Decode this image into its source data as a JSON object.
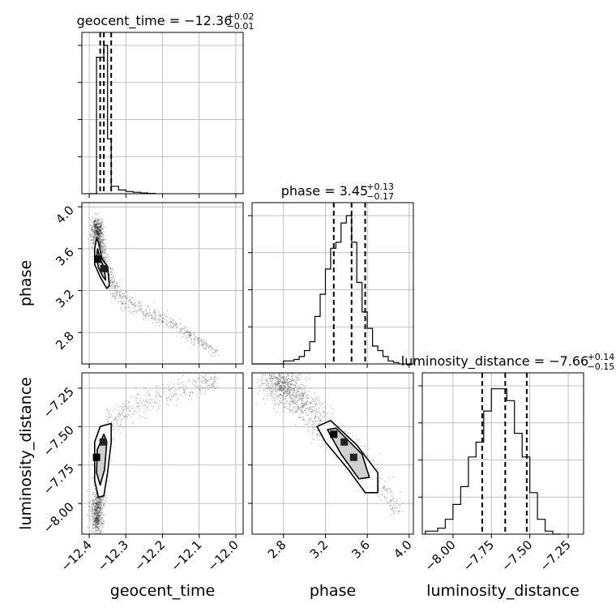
{
  "chart_data": {
    "type": "corner",
    "grid": true,
    "parameters": [
      {
        "name": "geocent_time",
        "range": [
          -12.42,
          -11.98
        ],
        "ticks": [
          -12.4,
          -12.3,
          -12.2,
          -12.1,
          -12.0
        ],
        "tick_labels": [
          "−12.4",
          "−12.3",
          "−12.2",
          "−12.1",
          "−12.0"
        ],
        "title": {
          "main": "geocent_time = −12.36",
          "plus": "+0.02",
          "minus": "−0.01"
        },
        "median": -12.36,
        "lower": -12.37,
        "upper": -12.34,
        "histogram": {
          "bins": [
            -12.4,
            -12.38,
            -12.37,
            -12.36,
            -12.35,
            -12.34,
            -12.32,
            -12.3,
            -12.28,
            -12.26,
            -12.24,
            -12.22
          ],
          "counts": [
            0,
            0.92,
            0.92,
            1.0,
            0.37,
            0.05,
            0.025,
            0.015,
            0.01,
            0.005,
            0.002,
            0
          ]
        }
      },
      {
        "name": "phase",
        "range": [
          2.5,
          4.04
        ],
        "ticks": [
          2.8,
          3.2,
          3.6,
          4.0
        ],
        "tick_labels": [
          "2.8",
          "3.2",
          "3.6",
          "4.0"
        ],
        "title": {
          "main": "phase = 3.45",
          "plus": "+0.13",
          "minus": "−0.17"
        },
        "median": 3.45,
        "lower": 3.28,
        "upper": 3.58,
        "histogram": {
          "bins": [
            2.5,
            2.8,
            2.9,
            2.95,
            3.0,
            3.05,
            3.1,
            3.15,
            3.2,
            3.25,
            3.3,
            3.35,
            3.4,
            3.45,
            3.5,
            3.55,
            3.6,
            3.65,
            3.7,
            3.75,
            3.8,
            3.85,
            3.9,
            4.04
          ],
          "counts": [
            0,
            0.02,
            0.03,
            0.05,
            0.09,
            0.15,
            0.32,
            0.47,
            0.64,
            0.78,
            0.82,
            0.95,
            1.0,
            0.82,
            0.55,
            0.35,
            0.24,
            0.12,
            0.09,
            0.05,
            0.02,
            0.01,
            0
          ]
        }
      },
      {
        "name": "luminosity_distance",
        "range": [
          -8.2,
          -7.15
        ],
        "ticks": [
          -8.0,
          -7.75,
          -7.5,
          -7.25
        ],
        "tick_labels": [
          "−8.00",
          "−7.75",
          "−7.50",
          "−7.25"
        ],
        "y_tick_labels": [
          "−8.00",
          "−7.75",
          "−7.50",
          "−7.25"
        ],
        "title": {
          "main": "luminosity_distance = −7.66",
          "plus": "+0.14",
          "minus": "−0.15"
        },
        "median": -7.66,
        "lower": -7.81,
        "upper": -7.52,
        "histogram": {
          "bins": [
            -8.18,
            -8.1,
            -8.05,
            -8.0,
            -7.95,
            -7.9,
            -7.85,
            -7.8,
            -7.75,
            -7.7,
            -7.65,
            -7.6,
            -7.55,
            -7.5,
            -7.45,
            -7.4,
            -7.35,
            -7.3
          ],
          "counts": [
            0.02,
            0.04,
            0.1,
            0.2,
            0.32,
            0.52,
            0.62,
            0.83,
            0.98,
            0.98,
            0.9,
            0.68,
            0.52,
            0.28,
            0.1,
            0.02,
            0
          ]
        }
      }
    ],
    "y_axis_labels": {
      "row1": "phase",
      "row2": "luminosity_distance"
    },
    "phase_ytick_labels": [
      "2.8",
      "3.2",
      "3.6",
      "4.0"
    ],
    "pairs": {
      "phase_vs_geocent_time": {
        "scatter_trend": [
          [
            -12.38,
            3.8
          ],
          [
            -12.37,
            3.6
          ],
          [
            -12.36,
            3.45
          ],
          [
            -12.35,
            3.35
          ],
          [
            -12.33,
            3.2
          ],
          [
            -12.3,
            3.1
          ],
          [
            -12.25,
            3.0
          ],
          [
            -12.2,
            2.92
          ],
          [
            -12.15,
            2.83
          ],
          [
            -12.1,
            2.72
          ],
          [
            -12.05,
            2.6
          ]
        ],
        "contour_outer": [
          [
            -12.385,
            3.6
          ],
          [
            -12.38,
            3.7
          ],
          [
            -12.375,
            3.66
          ],
          [
            -12.365,
            3.5
          ],
          [
            -12.35,
            3.43
          ],
          [
            -12.345,
            3.25
          ],
          [
            -12.352,
            3.22
          ],
          [
            -12.37,
            3.33
          ],
          [
            -12.385,
            3.45
          ]
        ],
        "contour_inner": [
          [
            -12.38,
            3.52
          ],
          [
            -12.377,
            3.6
          ],
          [
            -12.37,
            3.5
          ],
          [
            -12.36,
            3.43
          ],
          [
            -12.355,
            3.3
          ],
          [
            -12.362,
            3.33
          ],
          [
            -12.375,
            3.42
          ]
        ],
        "peaks": [
          [
            -12.377,
            3.5
          ],
          [
            -12.36,
            3.41
          ]
        ]
      },
      "ld_vs_geocent_time": {
        "scatter_trend": [
          [
            -12.38,
            -8.1
          ],
          [
            -12.37,
            -7.9
          ],
          [
            -12.36,
            -7.7
          ],
          [
            -12.35,
            -7.5
          ],
          [
            -12.3,
            -7.4
          ],
          [
            -12.2,
            -7.3
          ],
          [
            -12.1,
            -7.22
          ],
          [
            -12.05,
            -7.2
          ]
        ],
        "contour_outer": [
          [
            -12.385,
            -7.85
          ],
          [
            -12.385,
            -7.6
          ],
          [
            -12.37,
            -7.5
          ],
          [
            -12.34,
            -7.48
          ],
          [
            -12.34,
            -7.6
          ],
          [
            -12.35,
            -7.8
          ],
          [
            -12.36,
            -7.95
          ],
          [
            -12.375,
            -7.96
          ]
        ],
        "contour_inner": [
          [
            -12.38,
            -7.8
          ],
          [
            -12.378,
            -7.65
          ],
          [
            -12.36,
            -7.55
          ],
          [
            -12.352,
            -7.6
          ],
          [
            -12.358,
            -7.78
          ],
          [
            -12.37,
            -7.88
          ]
        ],
        "peaks": [
          [
            -12.38,
            -7.7
          ],
          [
            -12.362,
            -7.6
          ]
        ]
      },
      "ld_vs_phase": {
        "scatter_trend": [
          [
            2.75,
            -7.2
          ],
          [
            2.9,
            -7.3
          ],
          [
            3.05,
            -7.4
          ],
          [
            3.2,
            -7.52
          ],
          [
            3.35,
            -7.6
          ],
          [
            3.5,
            -7.7
          ],
          [
            3.65,
            -7.82
          ],
          [
            3.8,
            -7.95
          ],
          [
            3.9,
            -8.05
          ]
        ],
        "contour_outer": [
          [
            3.12,
            -7.5
          ],
          [
            3.25,
            -7.46
          ],
          [
            3.5,
            -7.62
          ],
          [
            3.7,
            -7.8
          ],
          [
            3.7,
            -7.93
          ],
          [
            3.58,
            -7.93
          ],
          [
            3.42,
            -7.78
          ],
          [
            3.2,
            -7.6
          ]
        ],
        "contour_inner": [
          [
            3.22,
            -7.52
          ],
          [
            3.3,
            -7.51
          ],
          [
            3.55,
            -7.68
          ],
          [
            3.62,
            -7.83
          ],
          [
            3.52,
            -7.84
          ],
          [
            3.35,
            -7.68
          ]
        ],
        "peaks": [
          [
            3.28,
            -7.55
          ],
          [
            3.38,
            -7.6
          ],
          [
            3.47,
            -7.7
          ]
        ]
      }
    }
  }
}
